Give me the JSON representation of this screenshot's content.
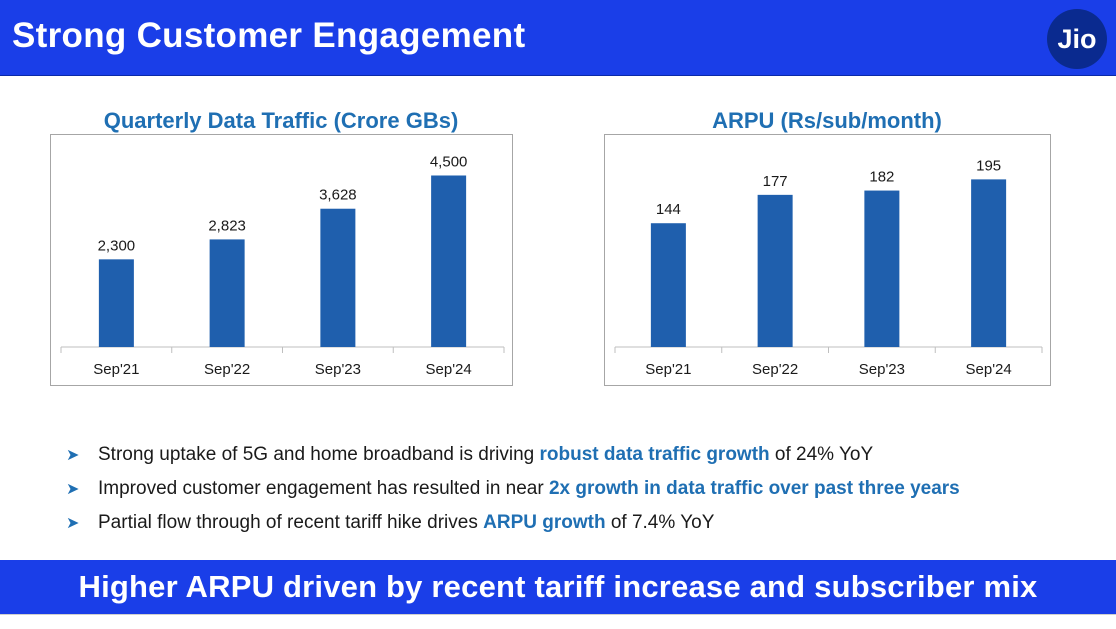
{
  "header": {
    "title": "Strong Customer Engagement",
    "logo_text": "Jio"
  },
  "chart_data": [
    {
      "type": "bar",
      "title": "Quarterly Data Traffic (Crore GBs)",
      "categories": [
        "Sep'21",
        "Sep'22",
        "Sep'23",
        "Sep'24"
      ],
      "values": [
        2300,
        2823,
        3628,
        4500
      ],
      "value_labels": [
        "2,300",
        "2,823",
        "3,628",
        "4,500"
      ],
      "bar_color": "#1f5fad",
      "ylim": [
        0,
        5300
      ]
    },
    {
      "type": "bar",
      "title": "ARPU (Rs/sub/month)",
      "categories": [
        "Sep'21",
        "Sep'22",
        "Sep'23",
        "Sep'24"
      ],
      "values": [
        144,
        177,
        182,
        195
      ],
      "value_labels": [
        "144",
        "177",
        "182",
        "195"
      ],
      "bar_color": "#1f5fad",
      "ylim": [
        0,
        235
      ]
    }
  ],
  "bullets": [
    {
      "pre": "Strong uptake of 5G and home broadband is driving ",
      "highlight": "robust data traffic growth",
      "post": " of 24% YoY"
    },
    {
      "pre": "Improved customer engagement has resulted in near ",
      "highlight": "2x growth in data traffic over past three years",
      "post": ""
    },
    {
      "pre": "Partial flow through of recent tariff hike drives ",
      "highlight": "ARPU growth",
      "post": " of 7.4% YoY"
    }
  ],
  "footer": {
    "text": "Higher ARPU driven by recent tariff increase and subscriber mix"
  },
  "colors": {
    "header_bg": "#1a3ee8",
    "accent": "#1f6fb3",
    "bar": "#1f5fad"
  }
}
